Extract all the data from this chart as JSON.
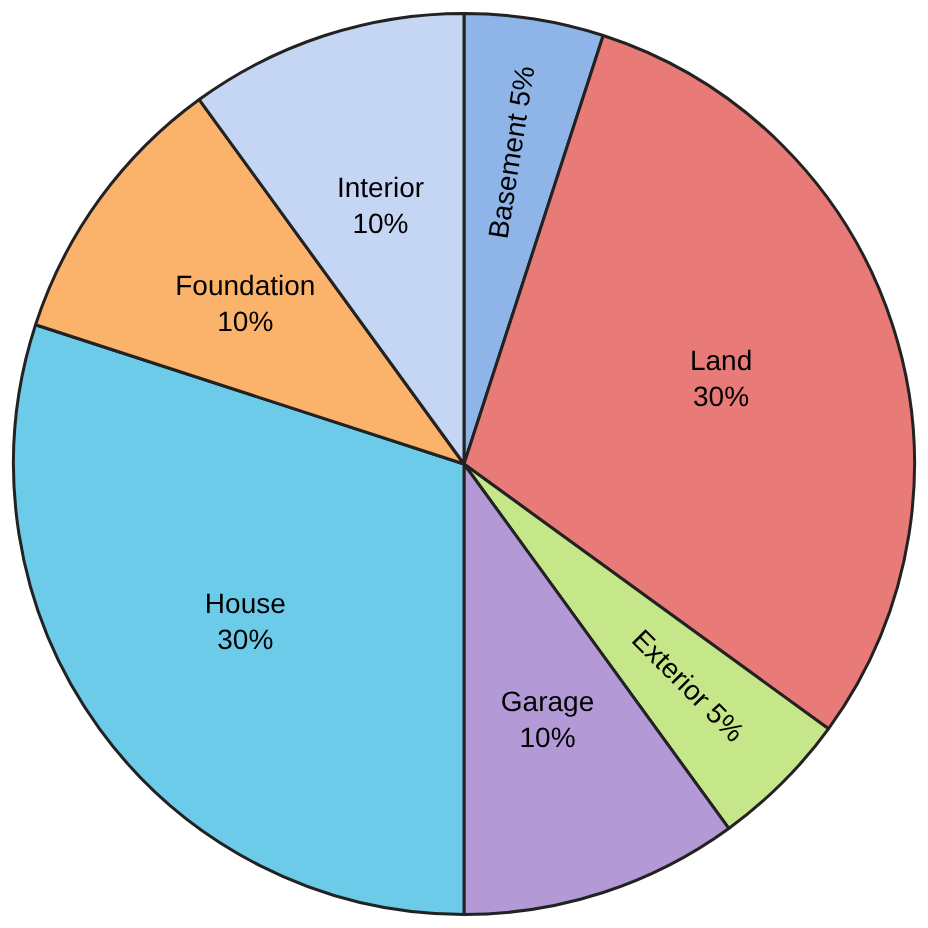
{
  "chart_data": {
    "type": "pie",
    "categories": [
      "Basement",
      "Land",
      "Exterior",
      "Garage",
      "House",
      "Foundation",
      "Interior"
    ],
    "values": [
      5,
      30,
      5,
      10,
      30,
      10,
      10
    ],
    "value_labels": [
      "5%",
      "30%",
      "5%",
      "10%",
      "30%",
      "10%",
      "10%"
    ],
    "colors": [
      "#8fb4e8",
      "#e87a78",
      "#c6e68a",
      "#b39ad6",
      "#6ccbe8",
      "#fbb26a",
      "#c4d6f4"
    ]
  }
}
